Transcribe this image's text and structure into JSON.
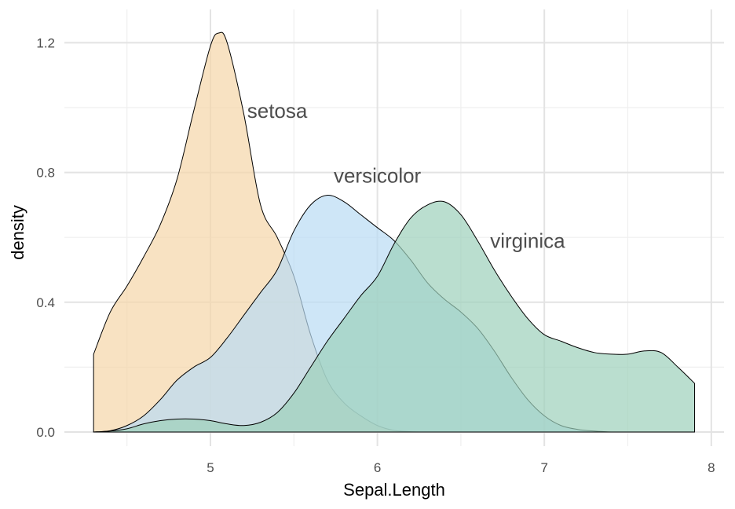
{
  "chart_data": {
    "type": "area",
    "title": "",
    "xlabel": "Sepal.Length",
    "ylabel": "density",
    "xlim": [
      4.3,
      7.9
    ],
    "ylim": [
      0.0,
      1.24
    ],
    "x_ticks": [
      5,
      6,
      7,
      8
    ],
    "x_tick_labels": [
      "5",
      "6",
      "7",
      "8"
    ],
    "y_ticks": [
      0.0,
      0.4,
      0.8,
      1.2
    ],
    "y_tick_labels": [
      "0.0",
      "0.4",
      "0.8",
      "1.2"
    ],
    "grid": true,
    "legend": "direct labels on curves",
    "series": [
      {
        "name": "setosa",
        "color": "#F5D6A8",
        "label_at": [
          5.4,
          0.99
        ],
        "x": [
          4.3,
          4.4,
          4.5,
          4.6,
          4.7,
          4.8,
          4.9,
          5.0,
          5.05,
          5.1,
          5.2,
          5.3,
          5.4,
          5.5,
          5.6,
          5.7,
          5.8,
          5.9,
          6.0,
          6.1,
          6.2,
          6.3,
          6.4,
          6.5,
          6.6,
          6.7,
          6.8,
          6.9,
          7.0,
          7.1,
          7.2,
          7.3,
          7.4,
          7.5,
          7.6,
          7.7,
          7.8,
          7.9
        ],
        "values": [
          0.24,
          0.37,
          0.45,
          0.54,
          0.64,
          0.78,
          0.99,
          1.19,
          1.23,
          1.2,
          0.98,
          0.7,
          0.6,
          0.48,
          0.3,
          0.16,
          0.09,
          0.05,
          0.02,
          0.005,
          0.001,
          0.0,
          0.0,
          0.0,
          0.0,
          0.0,
          0.0,
          0.0,
          0.0,
          0.0,
          0.0,
          0.0,
          0.0,
          0.0,
          0.0,
          0.0,
          0.0,
          0.0
        ]
      },
      {
        "name": "versicolor",
        "color": "#B9DCF3",
        "label_at": [
          6.0,
          0.79
        ],
        "x": [
          4.3,
          4.4,
          4.5,
          4.6,
          4.7,
          4.8,
          4.9,
          5.0,
          5.1,
          5.2,
          5.3,
          5.4,
          5.5,
          5.6,
          5.7,
          5.8,
          5.9,
          6.0,
          6.1,
          6.2,
          6.3,
          6.4,
          6.5,
          6.6,
          6.7,
          6.8,
          6.9,
          7.0,
          7.1,
          7.2,
          7.3,
          7.4,
          7.5,
          7.6,
          7.7,
          7.8,
          7.9
        ],
        "values": [
          0.0,
          0.004,
          0.02,
          0.05,
          0.1,
          0.16,
          0.2,
          0.23,
          0.29,
          0.36,
          0.43,
          0.5,
          0.62,
          0.7,
          0.73,
          0.71,
          0.67,
          0.63,
          0.59,
          0.53,
          0.46,
          0.41,
          0.37,
          0.32,
          0.25,
          0.17,
          0.1,
          0.05,
          0.02,
          0.008,
          0.003,
          0.0,
          0.0,
          0.0,
          0.0,
          0.0,
          0.0
        ]
      },
      {
        "name": "virginica",
        "color": "#9DD0BA",
        "label_at": [
          6.9,
          0.59
        ],
        "x": [
          4.3,
          4.4,
          4.5,
          4.6,
          4.7,
          4.8,
          4.9,
          5.0,
          5.1,
          5.2,
          5.3,
          5.4,
          5.5,
          5.6,
          5.7,
          5.8,
          5.9,
          6.0,
          6.1,
          6.2,
          6.3,
          6.4,
          6.5,
          6.6,
          6.7,
          6.8,
          6.9,
          7.0,
          7.1,
          7.2,
          7.3,
          7.4,
          7.5,
          7.6,
          7.7,
          7.8,
          7.9
        ],
        "values": [
          0.0,
          0.003,
          0.01,
          0.025,
          0.035,
          0.04,
          0.04,
          0.035,
          0.025,
          0.02,
          0.03,
          0.06,
          0.12,
          0.2,
          0.28,
          0.35,
          0.42,
          0.48,
          0.58,
          0.66,
          0.7,
          0.71,
          0.67,
          0.59,
          0.5,
          0.42,
          0.35,
          0.3,
          0.28,
          0.26,
          0.245,
          0.24,
          0.24,
          0.25,
          0.245,
          0.2,
          0.15
        ]
      }
    ]
  }
}
